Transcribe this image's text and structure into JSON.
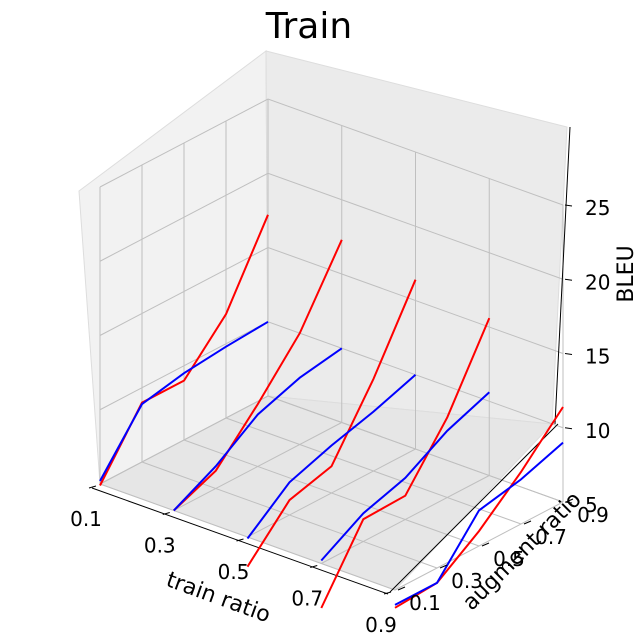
{
  "chart_data": {
    "type": "line",
    "title": "Train",
    "xlabel": "train ratio",
    "ylabel": "augment ratio",
    "zlabel": "BLEU",
    "x_ticks": [
      "0.1",
      "0.3",
      "0.5",
      "0.7",
      "0.9"
    ],
    "y_ticks": [
      "0.1",
      "0.3",
      "0.5",
      "0.7",
      "0.9"
    ],
    "z_ticks": [
      "5",
      "10",
      "15",
      "20",
      "25"
    ],
    "zlim": [
      5,
      25
    ],
    "grid": true,
    "x": [
      0.1,
      0.3,
      0.5,
      0.7,
      0.9
    ],
    "y": [
      0.1,
      0.3,
      0.5,
      0.7,
      0.9
    ],
    "series": [
      {
        "color": "#ff0000",
        "x": 0.1,
        "z": [
          4.9,
          9.0,
          9.0,
          12.0,
          17.2
        ]
      },
      {
        "color": "#0000ff",
        "x": 0.1,
        "z": [
          5.2,
          8.9,
          9.5,
          9.8,
          10.0
        ]
      },
      {
        "color": "#ff0000",
        "x": 0.3,
        "z": [
          5.0,
          6.2,
          9.2,
          12.5,
          17.3
        ]
      },
      {
        "color": "#0000ff",
        "x": 0.3,
        "z": [
          5.0,
          6.5,
          8.5,
          9.5,
          10.0
        ]
      },
      {
        "color": "#ff0000",
        "x": 0.5,
        "z": [
          3.0,
          6.0,
          6.8,
          11.2,
          16.4
        ]
      },
      {
        "color": "#0000ff",
        "x": 0.5,
        "z": [
          4.9,
          7.2,
          8.2,
          9.0,
          10.0
        ]
      },
      {
        "color": "#ff0000",
        "x": 0.7,
        "z": [
          2.0,
          6.5,
          6.6,
          10.4,
          15.6
        ]
      },
      {
        "color": "#0000ff",
        "x": 0.7,
        "z": [
          5.2,
          6.9,
          7.8,
          9.5,
          10.6
        ]
      },
      {
        "color": "#ff0000",
        "x": 0.9,
        "z": [
          3.8,
          4.0,
          6.0,
          8.5,
          11.4
        ]
      },
      {
        "color": "#0000ff",
        "x": 0.9,
        "z": [
          4.0,
          4.0,
          7.4,
          8.0,
          9.0
        ]
      }
    ]
  }
}
